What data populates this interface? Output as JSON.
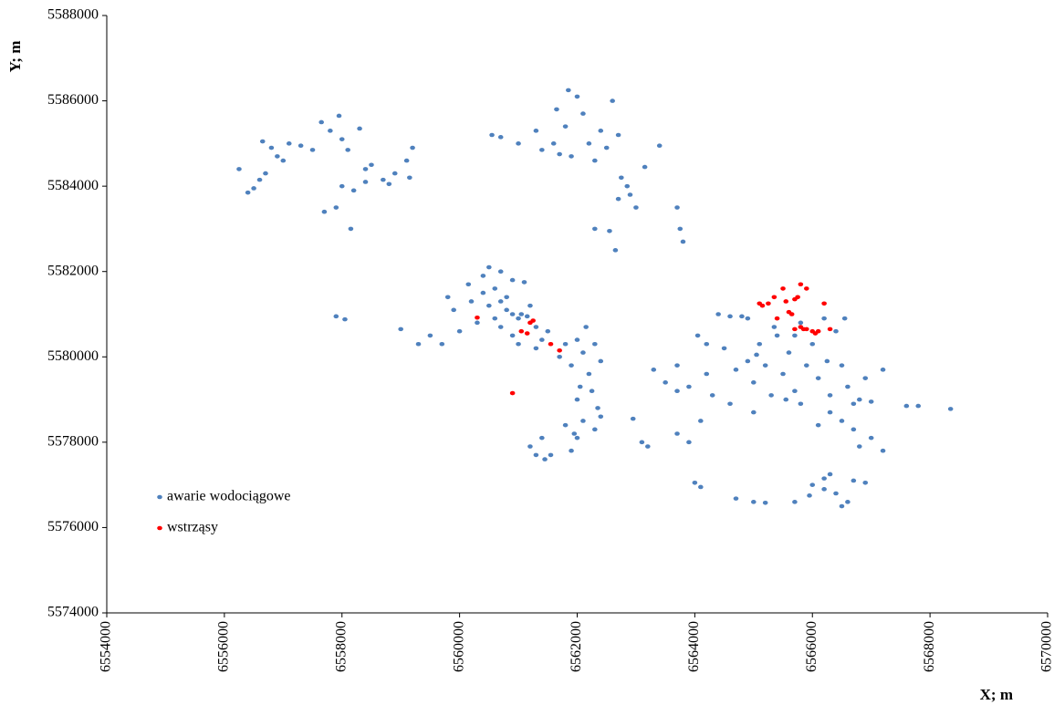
{
  "chart_data": {
    "type": "scatter",
    "x_label": "X; m",
    "y_label": "Y; m",
    "xlim": [
      6554000,
      6570000
    ],
    "ylim": [
      5574000,
      5588000
    ],
    "xticks": [
      6554000,
      6556000,
      6558000,
      6560000,
      6562000,
      6564000,
      6566000,
      6568000,
      6570000
    ],
    "yticks": [
      5574000,
      5576000,
      5578000,
      5580000,
      5582000,
      5584000,
      5586000,
      5588000
    ],
    "grid": false,
    "legend_position": "lower-left",
    "series": [
      {
        "name": "awarie wodociągowe",
        "color": "#4f81bd",
        "x": [
          6556250,
          6556400,
          6556500,
          6556600,
          6556700,
          6556650,
          6556800,
          6556900,
          6557000,
          6557100,
          6557300,
          6557500,
          6557650,
          6557800,
          6557950,
          6558000,
          6558100,
          6558300,
          6558400,
          6558500,
          6558000,
          6558200,
          6558400,
          6558700,
          6558900,
          6559100,
          6559200,
          6558800,
          6557700,
          6557900,
          6558150,
          6559150,
          6560550,
          6560700,
          6561000,
          6561300,
          6561400,
          6561600,
          6561700,
          6561800,
          6561850,
          6562000,
          6562100,
          6561900,
          6562200,
          6562300,
          6562400,
          6562500,
          6562600,
          6562700,
          6561650,
          6562750,
          6562850,
          6562700,
          6562900,
          6563000,
          6562300,
          6562550,
          6562650,
          6563150,
          6563400,
          6563700,
          6563750,
          6563800,
          6559000,
          6559300,
          6559500,
          6559700,
          6559900,
          6560000,
          6560150,
          6560400,
          6560500,
          6560600,
          6560700,
          6560800,
          6560900,
          6560500,
          6560600,
          6560700,
          6560800,
          6560900,
          6561000,
          6561100,
          6561200,
          6561300,
          6561400,
          6561500,
          6560400,
          6560200,
          6561000,
          6561150,
          6560700,
          6560900,
          6561300,
          6559800,
          6557900,
          6558050,
          6561050,
          6560300,
          6561700,
          6561800,
          6561900,
          6562000,
          6562100,
          6562200,
          6562300,
          6562400,
          6562150,
          6562050,
          6562250,
          6562350,
          6562300,
          6562100,
          6561950,
          6561800,
          6562000,
          6561900,
          6562400,
          6562000,
          6561200,
          6561300,
          6561400,
          6561450,
          6561550,
          6562950,
          6563100,
          6563200,
          6563300,
          6563500,
          6563700,
          6563900,
          6564050,
          6564200,
          6564300,
          6564400,
          6564600,
          6564800,
          6564900,
          6564500,
          6564700,
          6564900,
          6565000,
          6565100,
          6565200,
          6565300,
          6565400,
          6565500,
          6565600,
          6565700,
          6565800,
          6565900,
          6566000,
          6566100,
          6566200,
          6566300,
          6566400,
          6566500,
          6566550,
          6566600,
          6566700,
          6566800,
          6566900,
          6567000,
          6567200,
          6567000,
          6567200,
          6566700,
          6566500,
          6566300,
          6566800,
          6565000,
          6564600,
          6564100,
          6563700,
          6563900,
          6565800,
          6566100,
          6567600,
          6567800,
          6568350,
          6565050,
          6565350,
          6565700,
          6564200,
          6563700,
          6566250,
          6565550,
          6564000,
          6564100,
          6564700,
          6565000,
          6565200,
          6565700,
          6565950,
          6566000,
          6566200,
          6566300,
          6566400,
          6566500,
          6566600,
          6566700,
          6566900,
          6566200
        ],
        "values": [
          5584400,
          5583850,
          5583950,
          5584150,
          5584300,
          5585050,
          5584900,
          5584700,
          5584600,
          5585000,
          5584950,
          5584850,
          5585500,
          5585300,
          5585650,
          5585100,
          5584850,
          5585350,
          5584400,
          5584500,
          5584000,
          5583900,
          5584100,
          5584150,
          5584300,
          5584600,
          5584900,
          5584050,
          5583400,
          5583500,
          5583000,
          5584200,
          5585200,
          5585150,
          5585000,
          5585300,
          5584850,
          5585000,
          5584750,
          5585400,
          5586250,
          5586100,
          5585700,
          5584700,
          5585000,
          5584600,
          5585300,
          5584900,
          5586000,
          5585200,
          5585800,
          5584200,
          5584000,
          5583700,
          5583800,
          5583500,
          5583000,
          5582950,
          5582500,
          5584450,
          5584950,
          5583500,
          5583000,
          5582700,
          5580650,
          5580300,
          5580500,
          5580300,
          5581100,
          5580600,
          5581700,
          5581900,
          5582100,
          5581600,
          5582000,
          5581400,
          5581800,
          5581200,
          5580900,
          5580700,
          5581100,
          5580500,
          5580900,
          5581750,
          5581200,
          5580700,
          5580400,
          5580600,
          5581500,
          5581300,
          5580300,
          5580950,
          5581300,
          5581000,
          5580200,
          5581400,
          5580950,
          5580880,
          5581000,
          5580800,
          5580000,
          5580300,
          5579800,
          5580400,
          5580100,
          5579600,
          5580300,
          5579900,
          5580700,
          5579300,
          5579200,
          5578800,
          5578300,
          5578500,
          5578200,
          5578400,
          5578100,
          5577800,
          5578600,
          5579000,
          5577900,
          5577700,
          5578100,
          5577600,
          5577700,
          5578550,
          5578000,
          5577900,
          5579700,
          5579400,
          5579800,
          5579300,
          5580500,
          5579600,
          5579100,
          5581000,
          5580950,
          5580950,
          5580900,
          5580200,
          5579700,
          5579900,
          5579400,
          5580300,
          5579800,
          5579100,
          5580500,
          5579600,
          5580100,
          5579200,
          5580800,
          5579800,
          5580300,
          5579500,
          5580900,
          5579100,
          5580600,
          5579800,
          5580900,
          5579300,
          5578900,
          5579000,
          5579500,
          5578950,
          5579700,
          5578100,
          5577800,
          5578300,
          5578500,
          5578700,
          5577900,
          5578700,
          5578900,
          5578500,
          5578200,
          5578000,
          5578900,
          5578400,
          5578850,
          5578850,
          5578780,
          5580050,
          5580700,
          5580500,
          5580300,
          5579200,
          5579900,
          5579000,
          5577050,
          5576950,
          5576680,
          5576600,
          5576580,
          5576600,
          5576750,
          5577000,
          5577150,
          5577250,
          5576800,
          5576500,
          5576600,
          5577100,
          5577050,
          5576900
        ]
      },
      {
        "name": "wstrząsy",
        "color": "#ff0000",
        "x": [
          6560300,
          6560900,
          6561050,
          6561150,
          6561200,
          6561250,
          6561550,
          6561700,
          6565100,
          6565150,
          6565250,
          6565350,
          6565400,
          6565500,
          6565550,
          6565600,
          6565700,
          6565750,
          6565800,
          6565900,
          6565700,
          6565800,
          6565900,
          6566000,
          6566050,
          6566200,
          6566300,
          6565650,
          6565850,
          6566100
        ],
        "values": [
          5580920,
          5579150,
          5580600,
          5580550,
          5580800,
          5580850,
          5580300,
          5580150,
          5581250,
          5581200,
          5581250,
          5581400,
          5580900,
          5581600,
          5581300,
          5581050,
          5581350,
          5581400,
          5581700,
          5581600,
          5580650,
          5580700,
          5580650,
          5580600,
          5580550,
          5581250,
          5580650,
          5581000,
          5580650,
          5580600
        ]
      }
    ]
  }
}
